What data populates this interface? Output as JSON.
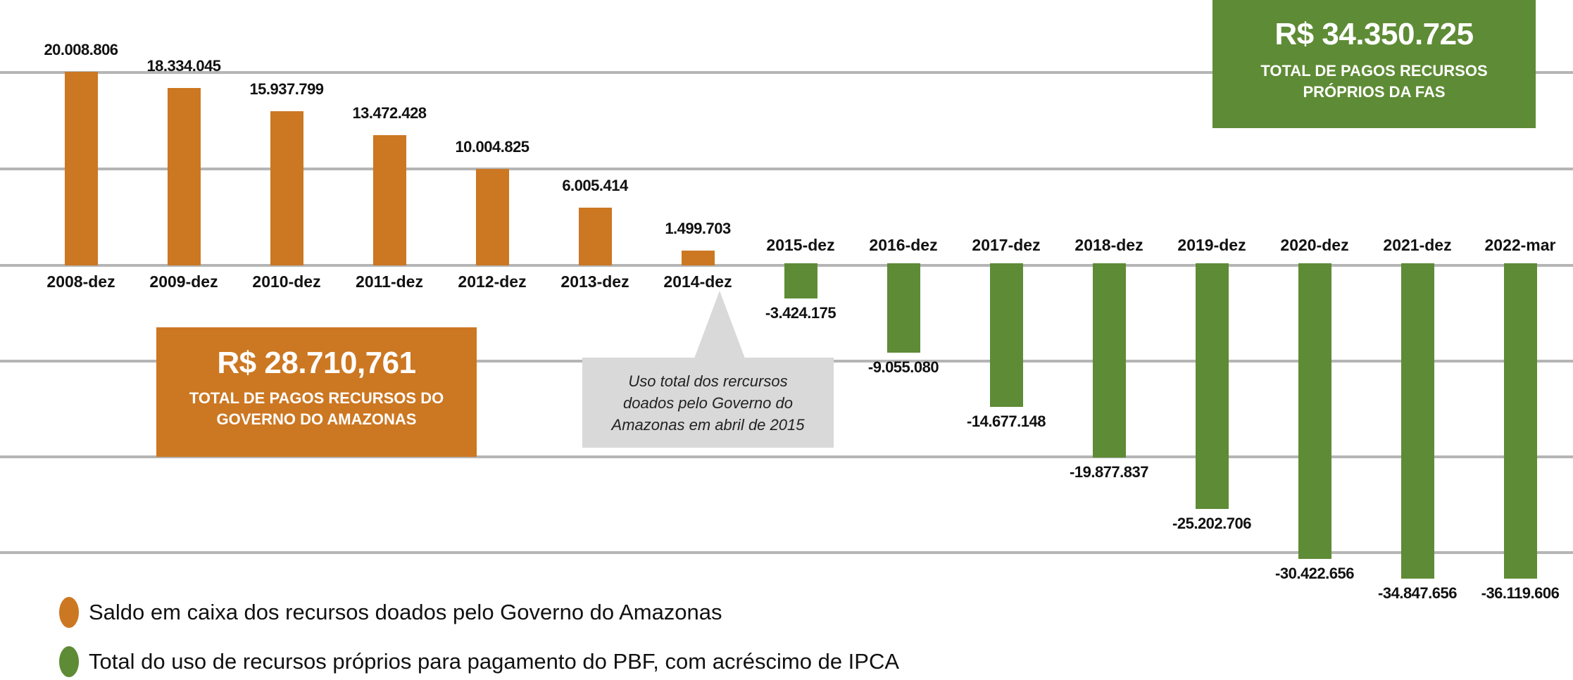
{
  "chart_data": {
    "type": "bar",
    "title": "",
    "xlabel": "",
    "ylabel": "",
    "ylim": [
      -36119606,
      20008806
    ],
    "grid": true,
    "legend_position": "bottom-left",
    "categories": [
      "2008-dez",
      "2009-dez",
      "2010-dez",
      "2011-dez",
      "2012-dez",
      "2013-dez",
      "2014-dez",
      "2015-dez",
      "2016-dez",
      "2017-dez",
      "2018-dez",
      "2019-dez",
      "2020-dez",
      "2021-dez",
      "2022-mar"
    ],
    "series": [
      {
        "name": "Saldo em caixa dos recursos doados pelo Governo do Amazonas",
        "color": "#cc7722",
        "values": [
          20008806,
          18334045,
          15937799,
          13472428,
          10004825,
          6005414,
          1499703,
          null,
          null,
          null,
          null,
          null,
          null,
          null,
          null
        ]
      },
      {
        "name": "Total do uso de recursos próprios para pagamento do PBF, com acréscimo de IPCA",
        "color": "#5e8b35",
        "values": [
          null,
          null,
          null,
          null,
          null,
          null,
          null,
          -3424175,
          -9055080,
          -14677148,
          -19877837,
          -25202706,
          -30422656,
          -34847656,
          -36119606
        ]
      }
    ],
    "data_labels": [
      "20.008.806",
      "18.334.045",
      "15.937.799",
      "13.472.428",
      "10.004.825",
      "6.005.414",
      "1.499.703",
      "-3.424.175",
      "-9.055.080",
      "-14.677.148",
      "-19.877.837",
      "-25.202.706",
      "-30.422.656",
      "-34.847.656",
      "-36.119.606"
    ],
    "annotations": [
      "R$ 28.710,761 — TOTAL DE PAGOS RECURSOS DO GOVERNO DO AMAZONAS",
      "R$ 34.350.725 — TOTAL DE PAGOS RECURSOS PRÓPRIOS DA FAS",
      "Uso total dos rercursos doados pelo Governo do Amazonas em abril de 2015"
    ]
  },
  "boxes": {
    "orange": {
      "amount": "R$ 28.710,761",
      "line1": "TOTAL DE PAGOS RECURSOS DO",
      "line2": "GOVERNO DO AMAZONAS"
    },
    "green": {
      "amount": "R$ 34.350.725",
      "line1": "TOTAL DE PAGOS RECURSOS",
      "line2": "PRÓPRIOS DA FAS"
    }
  },
  "callout": {
    "line1": "Uso total dos rercursos",
    "line2": "doados pelo Governo do",
    "line3": "Amazonas em abril de 2015"
  },
  "legend": [
    {
      "label": "Saldo em caixa dos recursos doados pelo Governo do Amazonas",
      "color": "#cc7722"
    },
    {
      "label": "Total do uso de recursos próprios para pagamento do PBF, com acréscimo de IPCA",
      "color": "#5e8b35"
    }
  ],
  "colors": {
    "orange": "#cc7722",
    "green": "#5e8b35",
    "grid": "#b5b5b5",
    "callout": "#d9d9d9"
  }
}
